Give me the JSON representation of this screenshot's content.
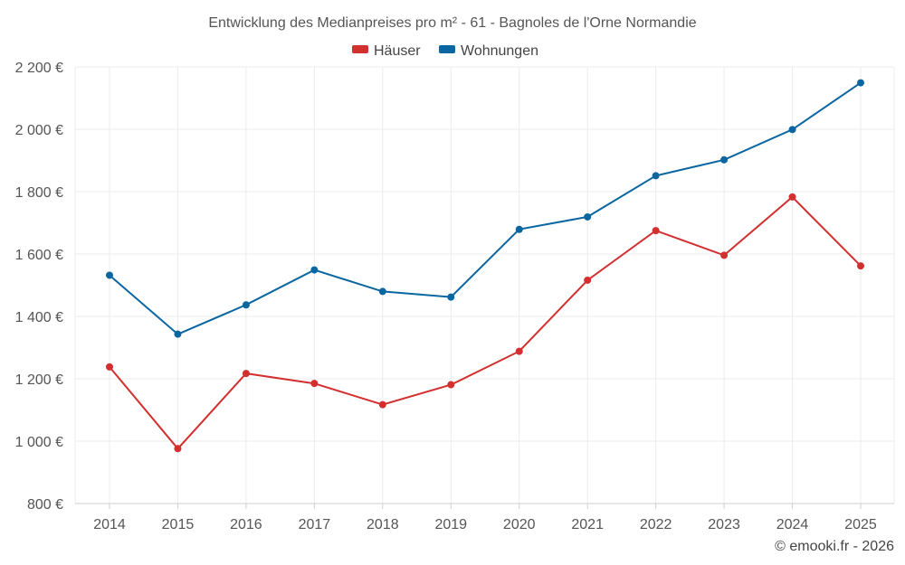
{
  "chart_data": {
    "type": "line",
    "title": "Entwicklung des Medianpreises pro m² - 61 - Bagnoles de l'Orne Normandie",
    "x": [
      "2014",
      "2015",
      "2016",
      "2017",
      "2018",
      "2019",
      "2020",
      "2021",
      "2022",
      "2023",
      "2024",
      "2025"
    ],
    "ylim": [
      800,
      2200
    ],
    "yticks": [
      800,
      1000,
      1200,
      1400,
      1600,
      1800,
      2000,
      2200
    ],
    "ytick_labels": [
      "800 €",
      "1 000 €",
      "1 200 €",
      "1 400 €",
      "1 600 €",
      "1 800 €",
      "2 000 €",
      "2 200 €"
    ],
    "grid": true,
    "legend_position": "top-center",
    "series": [
      {
        "name": "Häuser",
        "color": "#d32f2f",
        "values": [
          1238,
          976,
          1217,
          1185,
          1117,
          1181,
          1288,
          1516,
          1675,
          1596,
          1783,
          1562
        ]
      },
      {
        "name": "Wohnungen",
        "color": "#0a66a0",
        "values": [
          1532,
          1343,
          1437,
          1549,
          1480,
          1462,
          1679,
          1719,
          1851,
          1902,
          1999,
          2149
        ]
      }
    ],
    "credit": "© emooki.fr - 2026"
  }
}
